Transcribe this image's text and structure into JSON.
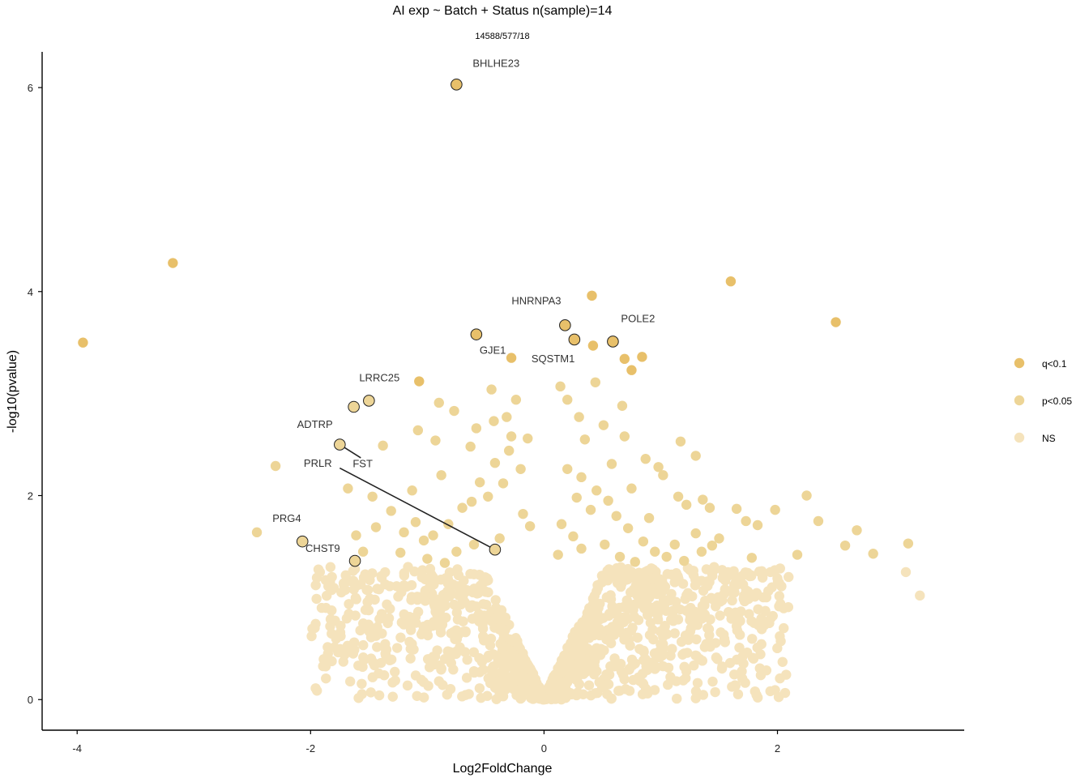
{
  "colors": {
    "q_lt_0_1": "#E8C06A",
    "p_lt_0_05": "#EDD597",
    "ns": "#F5E3BC",
    "highlight_stroke": "#222222",
    "connector": "#222222",
    "axis": "#000000"
  },
  "chart_data": {
    "type": "scatter",
    "title": "AI exp ~ Batch + Status n(sample)=14",
    "subtitle": "14588/577/18",
    "xlabel": "Log2FoldChange",
    "ylabel": "-log10(pvalue)",
    "xlim": [
      -4.3,
      3.6
    ],
    "ylim": [
      -0.3,
      6.35
    ],
    "x_ticks": [
      -4,
      -2,
      0,
      2
    ],
    "x_tick_labels": [
      "-4",
      "-2",
      "0",
      "2"
    ],
    "y_ticks": [
      0,
      2,
      4,
      6
    ],
    "y_tick_labels": [
      "0",
      "2",
      "4",
      "6"
    ],
    "grid": false,
    "legend_position": "right",
    "legend": [
      {
        "label": "q<0.1",
        "color_key": "q_lt_0_1"
      },
      {
        "label": "p<0.05",
        "color_key": "p_lt_0_05"
      },
      {
        "label": "NS",
        "color_key": "ns"
      }
    ],
    "q_points": [
      [
        -3.95,
        3.5
      ],
      [
        -3.18,
        4.28
      ],
      [
        1.6,
        4.1
      ],
      [
        2.5,
        3.7
      ],
      [
        0.41,
        3.96
      ],
      [
        0.42,
        3.47
      ],
      [
        0.69,
        3.34
      ],
      [
        0.84,
        3.36
      ],
      [
        0.75,
        3.23
      ],
      [
        -1.07,
        3.12
      ],
      [
        -0.28,
        3.35
      ]
    ],
    "p_points": [
      [
        -2.46,
        1.64
      ],
      [
        -2.3,
        2.29
      ],
      [
        -1.68,
        2.07
      ],
      [
        -1.61,
        1.61
      ],
      [
        -1.55,
        1.45
      ],
      [
        -1.47,
        1.99
      ],
      [
        -1.44,
        1.69
      ],
      [
        -1.38,
        2.49
      ],
      [
        -1.31,
        1.85
      ],
      [
        -1.23,
        1.44
      ],
      [
        -1.2,
        1.64
      ],
      [
        -1.13,
        2.05
      ],
      [
        -1.1,
        1.74
      ],
      [
        -1.08,
        2.64
      ],
      [
        -1.03,
        1.56
      ],
      [
        -0.93,
        2.54
      ],
      [
        -0.9,
        2.91
      ],
      [
        -0.88,
        2.2
      ],
      [
        -0.77,
        2.83
      ],
      [
        -0.63,
        2.48
      ],
      [
        -0.58,
        2.66
      ],
      [
        -0.45,
        3.04
      ],
      [
        -0.43,
        2.73
      ],
      [
        -0.32,
        2.77
      ],
      [
        -0.28,
        2.58
      ],
      [
        -0.24,
        2.94
      ],
      [
        -0.14,
        2.56
      ],
      [
        -0.3,
        2.44
      ],
      [
        -0.42,
        2.32
      ],
      [
        -0.55,
        2.13
      ],
      [
        -0.7,
        1.88
      ],
      [
        -0.82,
        1.72
      ],
      [
        -0.95,
        1.61
      ],
      [
        -1.0,
        1.38
      ],
      [
        -0.62,
        1.94
      ],
      [
        -0.48,
        1.99
      ],
      [
        -0.35,
        2.12
      ],
      [
        -0.2,
        2.26
      ],
      [
        -0.18,
        1.82
      ],
      [
        -0.12,
        1.7
      ],
      [
        -0.38,
        1.58
      ],
      [
        -0.6,
        1.52
      ],
      [
        -0.75,
        1.45
      ],
      [
        -0.85,
        1.34
      ],
      [
        0.14,
        3.07
      ],
      [
        0.2,
        2.94
      ],
      [
        0.3,
        2.77
      ],
      [
        0.35,
        2.55
      ],
      [
        0.44,
        3.11
      ],
      [
        0.51,
        2.69
      ],
      [
        0.58,
        2.31
      ],
      [
        0.69,
        2.58
      ],
      [
        0.67,
        2.88
      ],
      [
        0.75,
        2.07
      ],
      [
        0.87,
        2.36
      ],
      [
        0.9,
        1.78
      ],
      [
        0.98,
        2.28
      ],
      [
        1.02,
        2.2
      ],
      [
        1.17,
        2.53
      ],
      [
        1.15,
        1.99
      ],
      [
        1.22,
        1.91
      ],
      [
        1.3,
        2.39
      ],
      [
        1.36,
        1.96
      ],
      [
        1.42,
        1.88
      ],
      [
        1.3,
        1.63
      ],
      [
        1.35,
        1.45
      ],
      [
        1.44,
        1.51
      ],
      [
        1.5,
        1.58
      ],
      [
        1.65,
        1.87
      ],
      [
        1.73,
        1.75
      ],
      [
        1.83,
        1.71
      ],
      [
        1.78,
        1.39
      ],
      [
        1.98,
        1.86
      ],
      [
        2.17,
        1.42
      ],
      [
        2.25,
        2.0
      ],
      [
        2.35,
        1.75
      ],
      [
        2.58,
        1.51
      ],
      [
        2.68,
        1.66
      ],
      [
        2.82,
        1.43
      ],
      [
        3.12,
        1.53
      ],
      [
        0.2,
        2.26
      ],
      [
        0.32,
        2.18
      ],
      [
        0.45,
        2.05
      ],
      [
        0.55,
        1.95
      ],
      [
        0.62,
        1.8
      ],
      [
        0.72,
        1.68
      ],
      [
        0.85,
        1.55
      ],
      [
        0.95,
        1.45
      ],
      [
        0.28,
        1.98
      ],
      [
        0.4,
        1.86
      ],
      [
        0.15,
        1.72
      ],
      [
        0.25,
        1.6
      ],
      [
        0.52,
        1.52
      ],
      [
        0.65,
        1.4
      ],
      [
        0.78,
        1.35
      ],
      [
        1.05,
        1.4
      ],
      [
        1.12,
        1.52
      ],
      [
        1.2,
        1.36
      ],
      [
        0.12,
        1.42
      ],
      [
        0.32,
        1.48
      ]
    ],
    "ns_clusters": [
      {
        "x_min": -2.0,
        "x_max": 2.1,
        "y_max": 1.3
      }
    ],
    "ns_extra_points": [
      [
        -1.92,
        1.25
      ],
      [
        -1.62,
        1.28
      ],
      [
        -1.57,
        1.13
      ],
      [
        -1.32,
        0.89
      ],
      [
        -1.45,
        0.98
      ],
      [
        -1.39,
        0.84
      ],
      [
        -1.1,
        0.81
      ],
      [
        -1.2,
        1.12
      ],
      [
        -1.05,
        0.64
      ],
      [
        -0.95,
        0.42
      ],
      [
        -0.9,
        0.18
      ],
      [
        1.55,
        1.08
      ],
      [
        1.45,
        0.98
      ],
      [
        1.32,
        0.84
      ],
      [
        1.65,
        0.72
      ],
      [
        1.93,
        0.75
      ],
      [
        1.94,
        1.25
      ],
      [
        1.96,
        0.82
      ],
      [
        3.1,
        1.25
      ],
      [
        3.22,
        1.02
      ],
      [
        1.12,
        0.65
      ],
      [
        1.25,
        0.78
      ],
      [
        1.02,
        0.45
      ],
      [
        0.95,
        0.3
      ],
      [
        1.38,
        0.97
      ]
    ],
    "highlighted": [
      {
        "gene": "BHLHE23",
        "x": -0.75,
        "y": 6.03,
        "category": "q",
        "label_dx": 20,
        "label_dy": -22,
        "anchor": "start"
      },
      {
        "gene": "HNRNPA3",
        "x": 0.18,
        "y": 3.67,
        "category": "q",
        "label_dx": -66,
        "label_dy": -26,
        "anchor": "start"
      },
      {
        "gene": "POLE2",
        "x": 0.59,
        "y": 3.51,
        "category": "q",
        "label_dx": 10,
        "label_dy": -24,
        "anchor": "start"
      },
      {
        "gene": "GJE1",
        "x": -0.58,
        "y": 3.58,
        "category": "q",
        "label_dx": 4,
        "label_dy": 24,
        "anchor": "start"
      },
      {
        "gene": "SQSTM1",
        "x": 0.26,
        "y": 3.53,
        "category": "q",
        "label_dx": -53,
        "label_dy": 28,
        "anchor": "start"
      },
      {
        "gene": "LRRC25",
        "x": -1.5,
        "y": 2.93,
        "category": "p",
        "label_dx": -12,
        "label_dy": -24,
        "anchor": "start"
      },
      {
        "gene": "ADTRP",
        "x": -1.63,
        "y": 2.87,
        "category": "p",
        "label_dx": -70,
        "label_dy": 26,
        "anchor": "start"
      },
      {
        "gene": "FST",
        "x": -1.75,
        "y": 2.5,
        "category": "p",
        "label_dx": 16,
        "label_dy": 28,
        "anchor": "start"
      },
      {
        "gene": "PRLR",
        "x": -0.42,
        "y": 1.47,
        "category": "p",
        "label_dx": -236,
        "label_dy": -102,
        "anchor": "start"
      },
      {
        "gene": "PRG4",
        "x": -2.07,
        "y": 1.55,
        "category": "p",
        "label_dx": -37,
        "label_dy": -24,
        "anchor": "start"
      },
      {
        "gene": "CHST9",
        "x": -1.62,
        "y": 1.36,
        "category": "p",
        "label_dx": -61,
        "label_dy": -11,
        "anchor": "start"
      }
    ],
    "connectors": [
      {
        "gene": "FST",
        "from": [
          -1.75,
          2.5
        ],
        "to": [
          -1.57,
          2.37
        ]
      },
      {
        "gene": "PRLR",
        "from": [
          -0.42,
          1.47
        ],
        "to": [
          -1.75,
          2.27
        ]
      }
    ]
  }
}
